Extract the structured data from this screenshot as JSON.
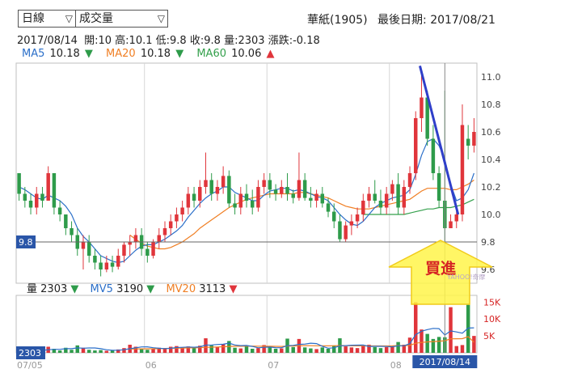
{
  "controls": {
    "period_value": "日線",
    "indicator_value": "成交量"
  },
  "header": {
    "stock_name": "華紙(1905)",
    "last_date_label": "最後日期:",
    "last_date": "2017/08/21"
  },
  "quote": {
    "date": "2017/08/14",
    "open_label": "開:",
    "open": "10",
    "high_label": "高:",
    "high": "10.1",
    "low_label": "低:",
    "low": "9.8",
    "close_label": "收:",
    "close": "9.8",
    "volume_label": "量:",
    "volume": "2303",
    "change_label": "漲跌:",
    "change": "-0.18"
  },
  "ma_legend": [
    {
      "label": "MA5",
      "value": "10.18",
      "arrow": "▼",
      "color": "#2b6fc9",
      "arrow_color": "#2e9b4a"
    },
    {
      "label": "MA20",
      "value": "10.18",
      "arrow": "▼",
      "color": "#f07f24",
      "arrow_color": "#2e9b4a"
    },
    {
      "label": "MA60",
      "value": "10.06",
      "arrow": "▲",
      "color": "#34a04c",
      "arrow_color": "#e0353b"
    }
  ],
  "vol_legend": [
    {
      "label": "量",
      "value": "2303",
      "arrow": "▼",
      "color": "#222222",
      "arrow_color": "#2e9b4a"
    },
    {
      "label": "MV5",
      "value": "3190",
      "arrow": "▼",
      "color": "#2b6fc9",
      "arrow_color": "#2e9b4a"
    },
    {
      "label": "MV20",
      "value": "3113",
      "arrow": "▼",
      "color": "#f07f24",
      "arrow_color": "#2e9b4a"
    }
  ],
  "annotation": {
    "text": "買進",
    "price_marker": "9.8",
    "volume_marker": "2303",
    "date_marker": "2017/08/14",
    "watermark": "YAHOO!奇摩"
  },
  "colors": {
    "up": "#e0353b",
    "down": "#2e9b4a",
    "ma5": "#2b6fc9",
    "ma20": "#f07f24",
    "ma60": "#34a04c",
    "trendline": "#2f3fc9",
    "arrow_fill": "#fff44a",
    "arrow_stroke": "#f1cb1a",
    "text_red": "#d62424"
  },
  "chart_data": {
    "type": "candlestick",
    "price_axis": {
      "ticks": [
        9.6,
        9.8,
        10.0,
        10.2,
        10.4,
        10.6,
        10.8,
        11.0
      ],
      "range": [
        9.5,
        11.1
      ]
    },
    "volume_axis": {
      "ticks": [
        "5K",
        "10K",
        "15K"
      ],
      "tick_values": [
        5000,
        10000,
        15000
      ],
      "range": [
        0,
        17000
      ]
    },
    "x_labels": [
      {
        "label": "07/05",
        "index": 0
      },
      {
        "label": "06",
        "index": 22
      },
      {
        "label": "07",
        "index": 43
      },
      {
        "label": "08",
        "index": 64
      }
    ],
    "ohlc": [
      [
        10.3,
        10.3,
        10.1,
        10.15
      ],
      [
        10.15,
        10.2,
        10.05,
        10.1
      ],
      [
        10.1,
        10.15,
        10.0,
        10.05
      ],
      [
        10.05,
        10.2,
        10.0,
        10.15
      ],
      [
        10.15,
        10.2,
        10.05,
        10.1
      ],
      [
        10.1,
        10.35,
        10.1,
        10.3
      ],
      [
        10.3,
        10.3,
        10.0,
        10.05
      ],
      [
        10.05,
        10.1,
        9.95,
        10.0
      ],
      [
        10.0,
        10.0,
        9.85,
        9.9
      ],
      [
        9.9,
        9.95,
        9.8,
        9.85
      ],
      [
        9.85,
        9.9,
        9.7,
        9.75
      ],
      [
        9.75,
        9.85,
        9.6,
        9.8
      ],
      [
        9.8,
        9.85,
        9.65,
        9.7
      ],
      [
        9.7,
        9.75,
        9.6,
        9.65
      ],
      [
        9.65,
        9.7,
        9.55,
        9.6
      ],
      [
        9.6,
        9.7,
        9.58,
        9.65
      ],
      [
        9.65,
        9.7,
        9.58,
        9.62
      ],
      [
        9.62,
        9.75,
        9.6,
        9.7
      ],
      [
        9.7,
        9.8,
        9.65,
        9.78
      ],
      [
        9.78,
        9.85,
        9.7,
        9.8
      ],
      [
        9.8,
        9.9,
        9.75,
        9.85
      ],
      [
        9.85,
        9.9,
        9.7,
        9.75
      ],
      [
        9.75,
        9.8,
        9.65,
        9.7
      ],
      [
        9.7,
        9.82,
        9.68,
        9.8
      ],
      [
        9.8,
        9.9,
        9.75,
        9.85
      ],
      [
        9.85,
        9.95,
        9.8,
        9.9
      ],
      [
        9.9,
        10.0,
        9.85,
        9.95
      ],
      [
        9.95,
        10.05,
        9.9,
        10.0
      ],
      [
        10.0,
        10.1,
        9.95,
        10.05
      ],
      [
        10.05,
        10.2,
        10.0,
        10.15
      ],
      [
        10.15,
        10.2,
        10.05,
        10.1
      ],
      [
        10.1,
        10.25,
        10.05,
        10.2
      ],
      [
        10.2,
        10.45,
        10.15,
        10.25
      ],
      [
        10.25,
        10.3,
        10.1,
        10.15
      ],
      [
        10.15,
        10.25,
        10.1,
        10.2
      ],
      [
        10.2,
        10.35,
        10.15,
        10.28
      ],
      [
        10.28,
        10.32,
        10.05,
        10.08
      ],
      [
        10.08,
        10.15,
        10.0,
        10.05
      ],
      [
        10.05,
        10.2,
        10.0,
        10.15
      ],
      [
        10.15,
        10.22,
        10.05,
        10.1
      ],
      [
        10.1,
        10.18,
        10.0,
        10.05
      ],
      [
        10.05,
        10.25,
        10.02,
        10.2
      ],
      [
        10.2,
        10.3,
        10.15,
        10.25
      ],
      [
        10.25,
        10.3,
        10.12,
        10.18
      ],
      [
        10.18,
        10.22,
        10.1,
        10.15
      ],
      [
        10.15,
        10.25,
        10.12,
        10.2
      ],
      [
        10.2,
        10.3,
        10.1,
        10.15
      ],
      [
        10.15,
        10.18,
        10.08,
        10.12
      ],
      [
        10.12,
        10.45,
        10.1,
        10.25
      ],
      [
        10.25,
        10.3,
        10.1,
        10.12
      ],
      [
        10.12,
        10.2,
        10.05,
        10.1
      ],
      [
        10.1,
        10.18,
        10.05,
        10.15
      ],
      [
        10.15,
        10.2,
        10.05,
        10.08
      ],
      [
        10.08,
        10.12,
        9.98,
        10.02
      ],
      [
        10.02,
        10.08,
        9.9,
        9.95
      ],
      [
        9.95,
        10.0,
        9.8,
        9.82
      ],
      [
        9.82,
        9.95,
        9.8,
        9.92
      ],
      [
        9.92,
        10.0,
        9.85,
        9.95
      ],
      [
        9.95,
        10.05,
        9.9,
        10.0
      ],
      [
        10.0,
        10.15,
        9.95,
        10.1
      ],
      [
        10.1,
        10.2,
        10.05,
        10.15
      ],
      [
        10.15,
        10.25,
        10.08,
        10.1
      ],
      [
        10.1,
        10.18,
        10.0,
        10.05
      ],
      [
        10.05,
        10.2,
        10.0,
        10.15
      ],
      [
        10.15,
        10.25,
        10.1,
        10.22
      ],
      [
        10.22,
        10.3,
        10.0,
        10.05
      ],
      [
        10.05,
        10.25,
        10.0,
        10.2
      ],
      [
        10.2,
        10.35,
        10.15,
        10.3
      ],
      [
        10.3,
        10.75,
        10.25,
        10.7
      ],
      [
        10.7,
        11.05,
        10.6,
        10.85
      ],
      [
        10.85,
        10.9,
        10.5,
        10.55
      ],
      [
        10.55,
        10.65,
        10.25,
        10.3
      ],
      [
        10.3,
        10.35,
        10.05,
        10.1
      ],
      [
        10.1,
        10.9,
        9.8,
        9.9
      ],
      [
        9.9,
        10.0,
        9.9,
        9.95
      ],
      [
        9.95,
        10.05,
        9.9,
        10.0
      ],
      [
        10.0,
        10.8,
        9.95,
        10.65
      ],
      [
        10.55,
        10.65,
        10.4,
        10.5
      ],
      [
        10.5,
        10.7,
        10.45,
        10.6
      ]
    ],
    "ma5": [
      10.2,
      10.18,
      10.15,
      10.12,
      10.11,
      10.14,
      10.12,
      10.1,
      10.06,
      10.0,
      9.9,
      9.84,
      9.8,
      9.75,
      9.7,
      9.68,
      9.66,
      9.65,
      9.66,
      9.7,
      9.74,
      9.77,
      9.78,
      9.78,
      9.8,
      9.82,
      9.85,
      9.88,
      9.92,
      9.98,
      10.03,
      10.08,
      10.12,
      10.15,
      10.17,
      10.2,
      10.2,
      10.16,
      10.14,
      10.12,
      10.1,
      10.1,
      10.14,
      10.17,
      10.18,
      10.19,
      10.19,
      10.17,
      10.18,
      10.17,
      10.15,
      10.13,
      10.12,
      10.1,
      10.05,
      10.0,
      9.96,
      9.93,
      9.92,
      9.95,
      10.0,
      10.05,
      10.08,
      10.1,
      10.12,
      10.13,
      10.14,
      10.18,
      10.29,
      10.43,
      10.53,
      10.55,
      10.5,
      10.4,
      10.22,
      10.1,
      10.12,
      10.18,
      10.3
    ],
    "ma20": [
      null,
      null,
      null,
      null,
      null,
      null,
      null,
      null,
      null,
      null,
      null,
      null,
      null,
      null,
      null,
      null,
      null,
      null,
      null,
      9.85,
      9.82,
      9.79,
      9.77,
      9.76,
      9.75,
      9.75,
      9.76,
      9.78,
      9.8,
      9.83,
      9.86,
      9.9,
      9.93,
      9.96,
      9.99,
      10.02,
      10.05,
      10.07,
      10.09,
      10.11,
      10.12,
      10.13,
      10.14,
      10.15,
      10.15,
      10.15,
      10.15,
      10.15,
      10.16,
      10.16,
      10.15,
      10.14,
      10.13,
      10.12,
      10.1,
      10.08,
      10.06,
      10.05,
      10.04,
      10.04,
      10.04,
      10.05,
      10.06,
      10.07,
      10.08,
      10.09,
      10.1,
      10.11,
      10.14,
      10.17,
      10.19,
      10.19,
      10.19,
      10.19,
      10.18,
      10.18,
      10.2,
      10.22,
      10.25
    ],
    "ma60": [
      null,
      null,
      null,
      null,
      null,
      null,
      null,
      null,
      null,
      null,
      null,
      null,
      null,
      null,
      null,
      null,
      null,
      null,
      null,
      null,
      null,
      null,
      null,
      null,
      null,
      null,
      null,
      null,
      null,
      null,
      null,
      null,
      null,
      null,
      null,
      null,
      null,
      null,
      null,
      null,
      null,
      null,
      null,
      null,
      null,
      null,
      null,
      null,
      null,
      null,
      null,
      null,
      null,
      null,
      null,
      null,
      null,
      null,
      null,
      10.0,
      10.0,
      10.0,
      10.0,
      10.0,
      10.0,
      10.0,
      10.0,
      10.01,
      10.02,
      10.03,
      10.04,
      10.04,
      10.05,
      10.05,
      10.05,
      10.06,
      10.07,
      10.09,
      10.11
    ],
    "volume": [
      800,
      600,
      700,
      900,
      600,
      1800,
      1200,
      700,
      1500,
      900,
      2200,
      1500,
      900,
      700,
      800,
      600,
      700,
      1000,
      1400,
      2400,
      1800,
      1300,
      900,
      1200,
      1500,
      1300,
      1800,
      2000,
      1600,
      1900,
      1500,
      2100,
      4300,
      2200,
      1800,
      2600,
      3500,
      1500,
      1300,
      2000,
      1200,
      1400,
      2300,
      1600,
      1200,
      1300,
      4200,
      1700,
      4100,
      1600,
      1300,
      1100,
      1600,
      1200,
      2200,
      4300,
      1900,
      1600,
      1400,
      2100,
      2400,
      1700,
      1400,
      1700,
      1700,
      3200,
      2400,
      4500,
      15000,
      6900,
      5600,
      4100,
      4700,
      4600,
      13500,
      2000,
      2300,
      14200,
      5000
    ],
    "mv5": [
      800,
      700,
      700,
      750,
      720,
      920,
      1040,
      1040,
      1220,
      1220,
      1460,
      1360,
      1440,
      1440,
      1220,
      900,
      740,
      760,
      900,
      1220,
      1460,
      1740,
      1760,
      1520,
      1340,
      1240,
      1340,
      1560,
      1640,
      1720,
      1660,
      1780,
      2280,
      2320,
      2460,
      2540,
      2880,
      2320,
      2140,
      2180,
      1900,
      1480,
      1640,
      1700,
      1540,
      1520,
      2120,
      2200,
      2500,
      2580,
      2840,
      2740,
      1940,
      1360,
      1480,
      2080,
      2120,
      2240,
      2280,
      2300,
      1900,
      1920,
      1920,
      1860,
      1780,
      2080,
      2080,
      2700,
      5360,
      6400,
      6880,
      7220,
      7160,
      5260,
      6480,
      6180,
      5820,
      7320,
      7400
    ],
    "mv20": [
      null,
      null,
      null,
      null,
      null,
      null,
      null,
      null,
      null,
      null,
      null,
      null,
      null,
      null,
      null,
      null,
      null,
      null,
      null,
      1100,
      1150,
      1180,
      1190,
      1200,
      1250,
      1290,
      1320,
      1360,
      1400,
      1450,
      1480,
      1510,
      1620,
      1680,
      1730,
      1800,
      1900,
      1930,
      1950,
      1970,
      1980,
      1960,
      1950,
      1940,
      1920,
      1900,
      2000,
      2020,
      2100,
      2120,
      2110,
      2080,
      2080,
      2060,
      2080,
      2150,
      2120,
      2080,
      2060,
      2050,
      2040,
      2040,
      2030,
      2040,
      2060,
      2120,
      2140,
      2200,
      2820,
      3060,
      3240,
      3340,
      3440,
      3570,
      4150,
      4160,
      4190,
      4790,
      3113
    ]
  }
}
